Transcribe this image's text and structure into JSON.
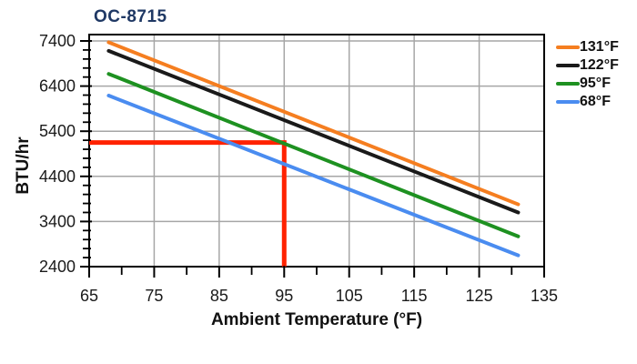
{
  "chart_data": {
    "type": "line",
    "title": "OC-8715",
    "title_color": "#1F3864",
    "xlabel": "Ambient Temperature (°F)",
    "ylabel": "BTU/hr",
    "xlim": [
      65,
      135
    ],
    "ylim": [
      2400,
      7400
    ],
    "x_major_ticks": [
      65,
      75,
      85,
      95,
      105,
      115,
      125,
      135
    ],
    "x_minor_step": 5,
    "y_major_ticks": [
      2400,
      3400,
      4400,
      5400,
      6400,
      7400
    ],
    "y_minor_step": 200,
    "grid": true,
    "gridline_color": "#A6A6A6",
    "axis_color": "#000000",
    "legend_position": "right",
    "series": [
      {
        "name": "131°F",
        "color": "#F57E20",
        "points": [
          [
            68,
            7370
          ],
          [
            131,
            3780
          ]
        ]
      },
      {
        "name": "122°F",
        "color": "#1A1A1A",
        "points": [
          [
            68,
            7180
          ],
          [
            131,
            3600
          ]
        ]
      },
      {
        "name": "95°F",
        "color": "#1E9121",
        "points": [
          [
            68,
            6670
          ],
          [
            131,
            3070
          ]
        ]
      },
      {
        "name": "68°F",
        "color": "#4A8CF0",
        "points": [
          [
            68,
            6190
          ],
          [
            131,
            2650
          ]
        ]
      }
    ],
    "annotation": {
      "type": "crosshair",
      "x": 95,
      "y": 5150,
      "color": "#FF2200",
      "description": "Red guide line from y-axis at ~5150 BTU/hr across to 95°F, then down to x-axis"
    }
  }
}
